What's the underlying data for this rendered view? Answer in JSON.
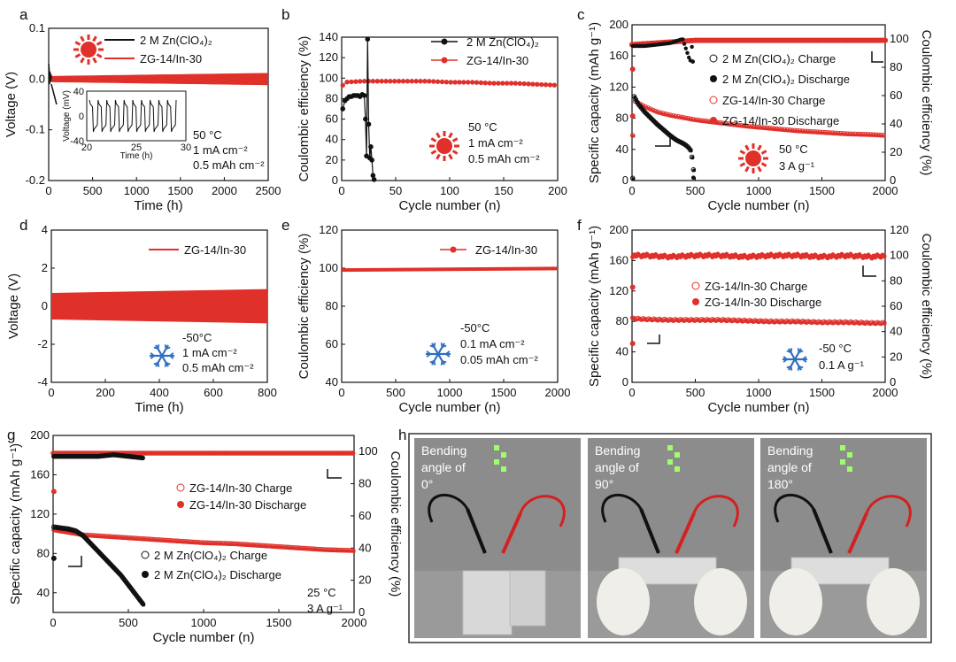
{
  "colors": {
    "red": "#e0302a",
    "black": "#111111",
    "snow": "#2f6fbf",
    "sun": "#e0302a",
    "photo_bg": "#8c8c8c"
  },
  "chart_data": [
    {
      "panel": "a",
      "type": "line",
      "xlabel": "Time (h)",
      "ylabel": "Voltage (V)",
      "xlim": [
        0,
        2500
      ],
      "ylim": [
        -0.2,
        0.1
      ],
      "xticks": [
        "0",
        "500",
        "1000",
        "1500",
        "2000",
        "2500"
      ],
      "yticks": [
        "-0.2",
        "-0.1",
        "0.0",
        "0.1"
      ],
      "legend": [
        "2 M Zn(ClO₄)₂",
        "ZG-14/In-30"
      ],
      "series": [
        {
          "name": "2 M Zn(ClO₄)₂",
          "x": [
            0,
            5,
            10,
            15,
            20,
            25,
            30
          ],
          "y": [
            0.03,
            0.02,
            -0.01,
            0.015,
            -0.005,
            0.01,
            0.0
          ]
        },
        {
          "name": "ZG-14/In-30",
          "x": [
            0,
            2500
          ],
          "y_low": [
            -0.006,
            -0.012
          ],
          "y_high": [
            0.006,
            0.012
          ]
        }
      ],
      "conditions": [
        "50 °C",
        "1 mA cm⁻²",
        "0.5 mAh cm⁻²"
      ],
      "inset": {
        "xlabel": "Time (h)",
        "ylabel": "Voltage (mV)",
        "xticks": [
          "20",
          "25",
          "30"
        ],
        "yticks": [
          "-40",
          "0",
          "40"
        ],
        "xlim": [
          20,
          30
        ],
        "ylim": [
          -40,
          40
        ]
      }
    },
    {
      "panel": "b",
      "type": "scatter",
      "xlabel": "Cycle number (n)",
      "ylabel": "Coulombic efficiency (%)",
      "xlim": [
        0,
        200
      ],
      "ylim": [
        0,
        140
      ],
      "xticks": [
        "0",
        "50",
        "100",
        "150",
        "200"
      ],
      "yticks": [
        "0",
        "20",
        "40",
        "60",
        "80",
        "100",
        "120",
        "140"
      ],
      "legend": [
        "2 M Zn(ClO₄)₂",
        "ZG-14/In-30"
      ],
      "series": [
        {
          "name": "2 M Zn(ClO₄)₂",
          "x": [
            1,
            3,
            5,
            7,
            9,
            11,
            13,
            15,
            17,
            19,
            21,
            22,
            23,
            24,
            25,
            26,
            27,
            28,
            29,
            30
          ],
          "y": [
            70,
            78,
            80,
            82,
            82,
            83,
            83,
            83,
            82,
            84,
            83,
            60,
            24,
            138,
            55,
            22,
            33,
            20,
            5,
            1
          ]
        },
        {
          "name": "ZG-14/In-30",
          "x": [
            2,
            20,
            40,
            60,
            80,
            100,
            120,
            140,
            160,
            180,
            200
          ],
          "y": [
            96,
            97,
            97,
            97,
            97,
            96,
            96,
            95,
            95,
            94,
            93
          ]
        }
      ],
      "conditions": [
        "50 °C",
        "1 mA cm⁻²",
        "0.5 mAh cm⁻²"
      ]
    },
    {
      "panel": "c",
      "type": "scatter",
      "xlabel": "Cycle number (n)",
      "ylabel": "Specific capacity (mAh g⁻¹)",
      "ylabel_right": "Coulombic efficiency (%)",
      "xlim": [
        0,
        2000
      ],
      "ylim": [
        0,
        200
      ],
      "ylim_right": [
        0,
        110
      ],
      "xticks": [
        "0",
        "500",
        "1000",
        "1500",
        "2000"
      ],
      "yticks": [
        "0",
        "40",
        "80",
        "120",
        "160",
        "200"
      ],
      "yticks_right": [
        "0",
        "20",
        "40",
        "60",
        "80",
        "100"
      ],
      "legend": [
        "2 M Zn(ClO₄)₂ Charge",
        "2 M Zn(ClO₄)₂ Discharge",
        "ZG-14/In-30 Charge",
        "ZG-14/In-30 Discharge"
      ],
      "series": [
        {
          "name": "ZG-14/In-30 Charge",
          "x": [
            10,
            100,
            200,
            300,
            400,
            500,
            700,
            900,
            1100,
            1300,
            1500,
            1700,
            1900,
            2000
          ],
          "y": [
            103,
            95,
            88,
            84,
            81,
            78,
            74,
            70,
            67,
            64,
            62,
            60,
            59,
            58
          ]
        },
        {
          "name": "2 M Zn(ClO₄)₂ Charge",
          "x": [
            10,
            50,
            100,
            150,
            200,
            250,
            300,
            350,
            400,
            430,
            460,
            480,
            490
          ],
          "y": [
            110,
            98,
            88,
            80,
            72,
            65,
            58,
            52,
            48,
            45,
            40,
            25,
            3
          ]
        },
        {
          "name": "ZG-14/In-30 CE",
          "x": [
            0,
            500,
            1000,
            1500,
            2000
          ],
          "y": [
            96,
            99,
            99,
            99,
            99
          ]
        },
        {
          "name": "2 M Zn(ClO₄)₂ CE",
          "x": [
            0,
            100,
            200,
            300,
            400,
            460,
            480,
            490
          ],
          "y": [
            95,
            95,
            96,
            97,
            100,
            84,
            100,
            2
          ]
        }
      ],
      "conditions": [
        "50 °C",
        "3 A g⁻¹"
      ]
    },
    {
      "panel": "d",
      "type": "area",
      "xlabel": "Time (h)",
      "ylabel": "Voltage (V)",
      "xlim": [
        0,
        800
      ],
      "ylim": [
        -4,
        4
      ],
      "xticks": [
        "0",
        "200",
        "400",
        "600",
        "800"
      ],
      "yticks": [
        "-4",
        "-2",
        "0",
        "2",
        "4"
      ],
      "legend": [
        "ZG-14/In-30"
      ],
      "series": [
        {
          "name": "ZG-14/In-30",
          "x": [
            0,
            800
          ],
          "y_low": [
            -0.7,
            -0.9
          ],
          "y_high": [
            0.7,
            0.9
          ]
        }
      ],
      "conditions": [
        "-50°C",
        "1 mA cm⁻²",
        "0.5 mAh cm⁻²"
      ]
    },
    {
      "panel": "e",
      "type": "line",
      "xlabel": "Cycle number (n)",
      "ylabel": "Coulombic efficiency (%)",
      "xlim": [
        0,
        2000
      ],
      "ylim": [
        40,
        120
      ],
      "xticks": [
        "0",
        "500",
        "1000",
        "1500",
        "2000"
      ],
      "yticks": [
        "40",
        "60",
        "80",
        "100",
        "120"
      ],
      "legend": [
        "ZG-14/In-30"
      ],
      "series": [
        {
          "name": "ZG-14/In-30",
          "x": [
            0,
            500,
            1000,
            1500,
            2000
          ],
          "y": [
            99,
            99.5,
            99.6,
            99.7,
            99.8
          ]
        }
      ],
      "conditions": [
        "-50°C",
        "0.1 mA cm⁻²",
        "0.05 mAh cm⁻²"
      ]
    },
    {
      "panel": "f",
      "type": "scatter",
      "xlabel": "Cycle number (n)",
      "ylabel": "Specific capacity (mAh g⁻¹)",
      "ylabel_right": "Coulombic efficiency (%)",
      "xlim": [
        0,
        2000
      ],
      "ylim": [
        0,
        200
      ],
      "ylim_right": [
        0,
        120
      ],
      "xticks": [
        "0",
        "500",
        "1000",
        "1500",
        "2000"
      ],
      "yticks": [
        "0",
        "40",
        "80",
        "120",
        "160",
        "200"
      ],
      "yticks_right": [
        "0",
        "20",
        "40",
        "60",
        "80",
        "100",
        "120"
      ],
      "legend": [
        "ZG-14/In-30 Charge",
        "ZG-14/In-30 Discharge"
      ],
      "series": [
        {
          "name": "ZG-14/In-30 Charge",
          "x": [
            5,
            100,
            300,
            500,
            700,
            900,
            1100,
            1300,
            1500,
            1700,
            1900,
            2000
          ],
          "y": [
            84,
            83,
            82,
            82,
            82,
            81,
            80,
            80,
            79,
            79,
            78,
            78
          ]
        },
        {
          "name": "ZG-14/In-30 CE",
          "x": [
            5,
            100,
            300,
            500,
            700,
            900,
            1100,
            1300,
            1500,
            1700,
            1900,
            2000
          ],
          "y": [
            100,
            100,
            99,
            100,
            100,
            99,
            100,
            100,
            99,
            100,
            99,
            100
          ]
        },
        {
          "name": "initial",
          "x": [
            0,
            0
          ],
          "y": [
            125,
            51
          ]
        }
      ],
      "conditions": [
        "-50 °C",
        "0.1 A g⁻¹"
      ]
    },
    {
      "panel": "g",
      "type": "scatter",
      "xlabel": "Cycle number (n)",
      "ylabel": "Specific capacity (mAh g⁻¹)",
      "ylabel_right": "Coulombic efficiency (%)",
      "xlim": [
        0,
        2000
      ],
      "ylim": [
        20,
        200
      ],
      "ylim_right": [
        0,
        110
      ],
      "xticks": [
        "0",
        "500",
        "1000",
        "1500",
        "2000"
      ],
      "yticks": [
        "40",
        "80",
        "120",
        "160",
        "200"
      ],
      "yticks_right": [
        "0",
        "20",
        "40",
        "60",
        "80",
        "100"
      ],
      "legend": [
        "ZG-14/In-30 Charge",
        "ZG-14/In-30 Discharge",
        "2 M Zn(ClO₄)₂ Charge",
        "2 M Zn(ClO₄)₂ Discharge"
      ],
      "series": [
        {
          "name": "ZG-14/In-30 Charge",
          "x": [
            5,
            200,
            400,
            600,
            800,
            1000,
            1200,
            1400,
            1600,
            1800,
            2000
          ],
          "y": [
            104,
            99,
            97,
            95,
            93,
            91,
            90,
            88,
            86,
            84,
            83
          ]
        },
        {
          "name": "2 M Zn(ClO₄)₂ Charge",
          "x": [
            5,
            50,
            100,
            150,
            200,
            250,
            300,
            350,
            400,
            450,
            500,
            550,
            600
          ],
          "y": [
            107,
            106,
            105,
            103,
            98,
            90,
            82,
            74,
            66,
            58,
            48,
            38,
            28
          ]
        },
        {
          "name": "ZG-14/In-30 CE",
          "x": [
            0,
            500,
            1000,
            1500,
            2000
          ],
          "y": [
            99,
            99,
            99,
            99,
            99
          ]
        },
        {
          "name": "2 M Zn(ClO₄)₂ CE",
          "x": [
            0,
            100,
            200,
            300,
            400,
            500,
            600
          ],
          "y": [
            97,
            97,
            97,
            97,
            98,
            97,
            96
          ]
        },
        {
          "name": "initial",
          "x": [
            0,
            0
          ],
          "y": [
            143,
            75
          ]
        }
      ],
      "conditions": [
        "25 °C",
        "3 A g⁻¹"
      ]
    }
  ],
  "panels": {
    "a": "a",
    "b": "b",
    "c": "c",
    "d": "d",
    "e": "e",
    "f": "f",
    "g": "g",
    "h": "h"
  },
  "photos": [
    {
      "label_line1": "Bending",
      "label_line2": "angle of",
      "label_line3": "0°"
    },
    {
      "label_line1": "Bending",
      "label_line2": "angle of",
      "label_line3": "90°"
    },
    {
      "label_line1": "Bending",
      "label_line2": "angle of",
      "label_line3": "180°"
    }
  ]
}
